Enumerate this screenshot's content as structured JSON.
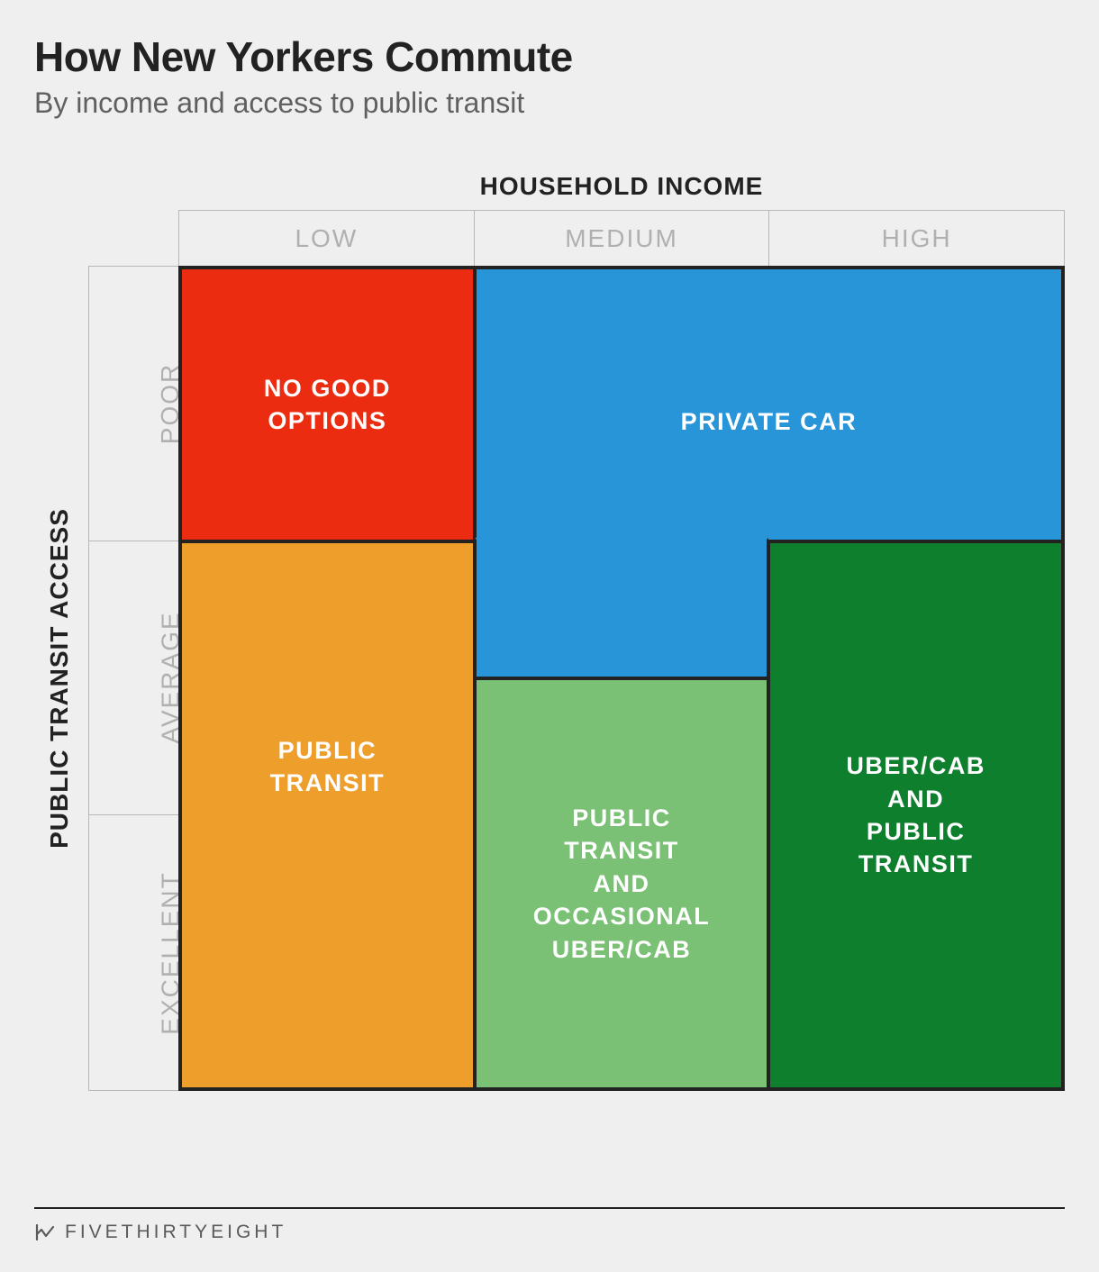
{
  "background_color": "#efefef",
  "title": "How New Yorkers Commute",
  "title_fontsize": 46,
  "title_color": "#222222",
  "subtitle": "By income and access to public transit",
  "subtitle_fontsize": 32,
  "subtitle_color": "#606060",
  "chart": {
    "type": "grid-matrix",
    "grid_columns": 6,
    "grid_rows": 6,
    "cell_border_color": "#222222",
    "cell_border_width": 2,
    "outer_border_color": "#222222",
    "outer_border_width": 2,
    "header_border_color": "#b8b8b8",
    "x_axis": {
      "title": "HOUSEHOLD INCOME",
      "title_fontsize": 28,
      "title_fontweight": 800,
      "labels": [
        "LOW",
        "MEDIUM",
        "HIGH"
      ],
      "label_fontsize": 28,
      "label_color": "#b0b0b0"
    },
    "y_axis": {
      "title": "PUBLIC TRANSIT ACCESS",
      "title_fontsize": 28,
      "title_fontweight": 800,
      "labels": [
        "POOR",
        "AVERAGE",
        "EXCELLENT"
      ],
      "label_fontsize": 28,
      "label_color": "#b0b0b0"
    },
    "regions": [
      {
        "label": "NO GOOD OPTIONS",
        "color": "#ec2c11",
        "text_color": "#ffffff",
        "col_start": 1,
        "col_span": 2,
        "row_start": 1,
        "row_span": 2
      },
      {
        "label": "PRIVATE CAR",
        "color": "#2895d8",
        "text_color": "#ffffff",
        "col_start": 3,
        "col_span": 4,
        "row_start": 1,
        "row_span": 2,
        "label_row_offset": 0
      },
      {
        "label": "",
        "color": "#2895d8",
        "text_color": "#ffffff",
        "col_start": 3,
        "col_span": 2,
        "row_start": 3,
        "row_span": 1,
        "merge_with_above": true
      },
      {
        "label": "PUBLIC TRANSIT",
        "color": "#ee9e2a",
        "text_color": "#ffffff",
        "col_start": 1,
        "col_span": 2,
        "row_start": 3,
        "row_span": 4
      },
      {
        "label": "PUBLIC TRANSIT AND OCCASIONAL UBER/CAB",
        "color": "#7bc175",
        "text_color": "#ffffff",
        "col_start": 3,
        "col_span": 2,
        "row_start": 4,
        "row_span": 3
      },
      {
        "label": "UBER/CAB AND PUBLIC TRANSIT",
        "color": "#0d7f2d",
        "text_color": "#ffffff",
        "col_start": 5,
        "col_span": 2,
        "row_start": 3,
        "row_span": 4
      }
    ],
    "cell_label_fontsize": 27,
    "cell_label_fontweight": 800
  },
  "footer": {
    "brand": "FIVETHIRTYEIGHT",
    "brand_fontsize": 21,
    "brand_color": "#5a5a5a",
    "rule_color": "#222222"
  }
}
